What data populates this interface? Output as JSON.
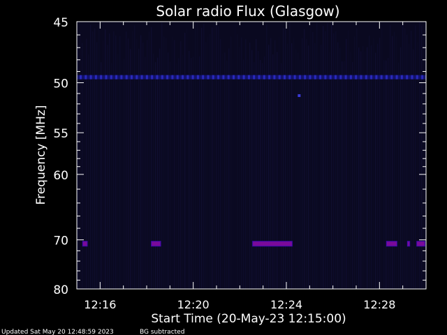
{
  "chart_data": {
    "type": "heatmap",
    "title": "Solar radio Flux (Glasgow)",
    "xlabel": "Start Time (20-May-23 12:15:00)",
    "ylabel": "Frequency [MHz]",
    "x_unit": "minutes after 12:15:00",
    "xlim": [
      0.0,
      15.0
    ],
    "ylim": [
      80,
      45
    ],
    "y_scale": "reciprocal",
    "x_ticks": [
      {
        "value": 1,
        "label": "12:16"
      },
      {
        "value": 5,
        "label": "12:20"
      },
      {
        "value": 9,
        "label": "12:24"
      },
      {
        "value": 13,
        "label": "12:28"
      }
    ],
    "y_ticks": [
      {
        "value": 45,
        "label": "45"
      },
      {
        "value": 50,
        "label": "50"
      },
      {
        "value": 55,
        "label": "55"
      },
      {
        "value": 60,
        "label": "60"
      },
      {
        "value": 70,
        "label": "70"
      },
      {
        "value": 80,
        "label": "80"
      }
    ],
    "colors": {
      "background": "#0a0920",
      "axes": "#ffffff",
      "band_50": "#1a1aa8",
      "burst_70": "#7a0a9a"
    },
    "features": [
      {
        "name": "band near 50 MHz",
        "freq_mhz": 49.5,
        "x_start": 0.0,
        "x_end": 15.0
      },
      {
        "name": "emission near 70 MHz",
        "freq_mhz": 70.7,
        "segments": [
          [
            0.25,
            0.45
          ],
          [
            3.2,
            3.6
          ],
          [
            7.55,
            9.25
          ],
          [
            13.3,
            13.75
          ],
          [
            14.2,
            14.3
          ],
          [
            14.6,
            14.95
          ]
        ]
      },
      {
        "name": "spot near 51 MHz",
        "freq_mhz": 51.2,
        "x": 9.55
      }
    ]
  },
  "footer": {
    "updated": "Updated Sat May 20 12:48:59 2023",
    "bg": "BG subtracted"
  }
}
